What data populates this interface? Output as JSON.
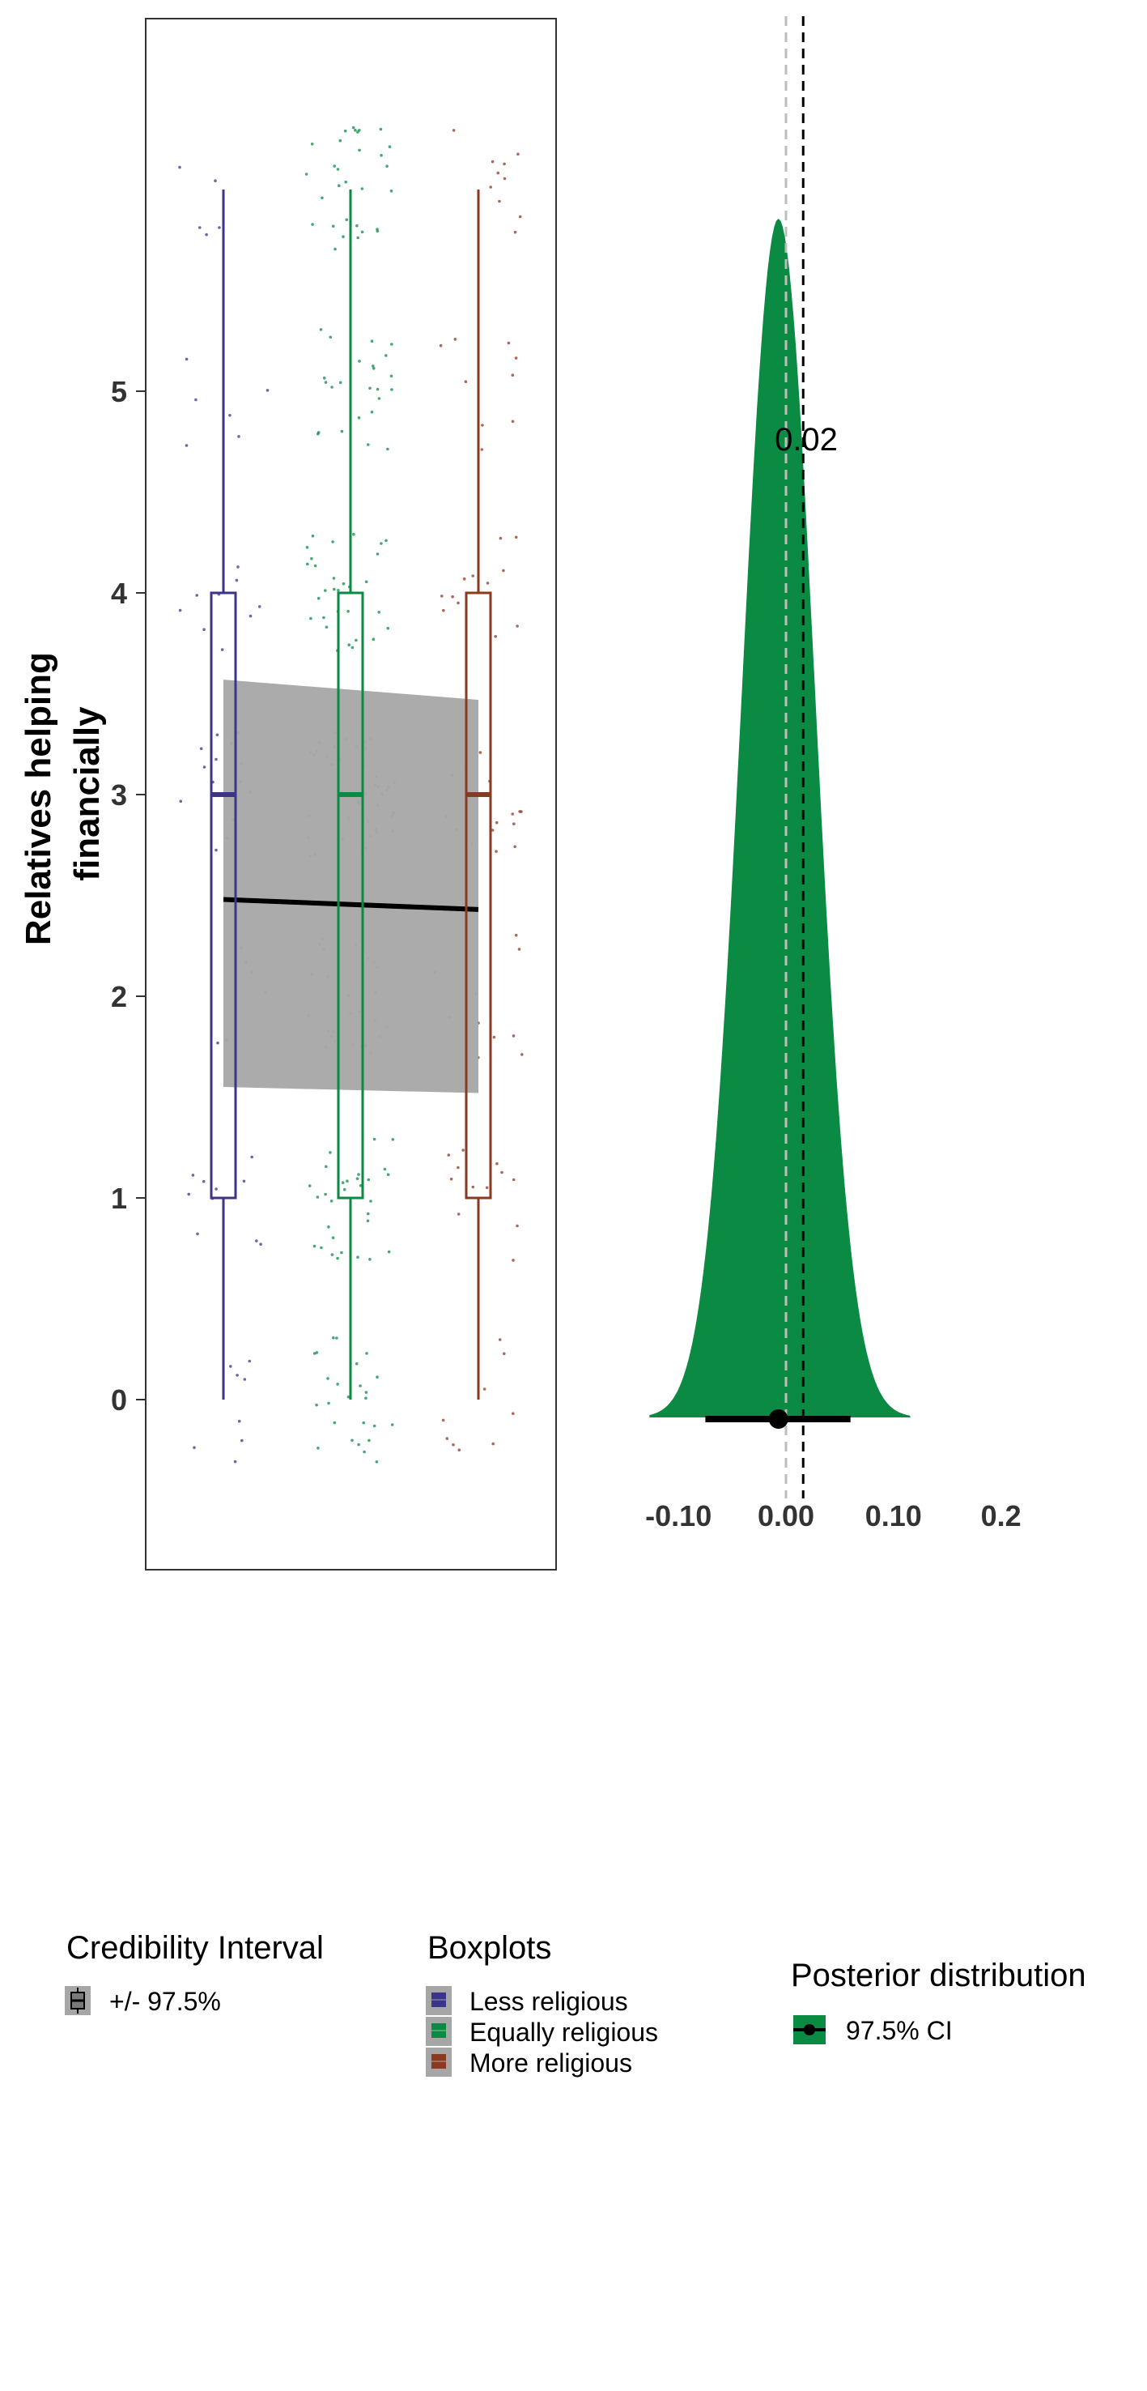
{
  "chart_data": [
    {
      "type": "box",
      "ylabel": "Relatives helping financially",
      "y_ticks": [
        "0",
        "1",
        "2",
        "3",
        "4",
        "5"
      ],
      "ylim": [
        -0.7,
        6.9
      ],
      "xlabel": "",
      "categories": [
        "Less religious",
        "Equally religious",
        "More religious"
      ],
      "boxes": [
        {
          "name": "Less religious",
          "color": "#3b3589",
          "min": 0,
          "q1": 1,
          "median": 3,
          "q3": 4,
          "max": 6
        },
        {
          "name": "Equally religious",
          "color": "#0b8a43",
          "color_fill": "#0b8a43",
          "min": 0,
          "q1": 1,
          "median": 3,
          "q3": 4,
          "max": 6
        },
        {
          "name": "More religious",
          "color": "#8b3a22",
          "min": 0,
          "q1": 1,
          "median": 3,
          "q3": 4,
          "max": 6
        }
      ],
      "regression": {
        "x": [
          1,
          3
        ],
        "y": [
          2.48,
          2.43
        ],
        "lower": [
          1.55,
          1.52
        ],
        "upper": [
          3.57,
          3.47
        ],
        "color": "#000000",
        "band_color": "#a6a6a6"
      },
      "jitter_levels": [
        0,
        1,
        2,
        3,
        4,
        5,
        6
      ]
    },
    {
      "type": "density",
      "x_ticks": [
        "-0.10",
        "0.00",
        "0.10",
        "0.2"
      ],
      "x_tick_values": [
        -0.1,
        0.0,
        0.1,
        0.2
      ],
      "xlim": [
        -0.143,
        0.235
      ],
      "mean": -0.007,
      "sd": 0.034,
      "fill": "#0b8a43",
      "ci": [
        -0.075,
        0.06
      ],
      "point_estimate": -0.007,
      "reference_lines": [
        {
          "x": 0.0,
          "color": "#bdbdbd",
          "style": "dashed"
        },
        {
          "x": 0.016,
          "color": "#000000",
          "style": "dashed"
        }
      ],
      "annotation": "0.02"
    }
  ],
  "legend": {
    "credibility": {
      "title": "Credibility Interval",
      "items": [
        "+/- 97.5%"
      ]
    },
    "boxplots": {
      "title": "Boxplots",
      "items": [
        "Less religious",
        "Equally religious",
        "More religious"
      ],
      "colors": [
        "#3b3589",
        "#0b8a43",
        "#8b3a22"
      ]
    },
    "posterior": {
      "title": "Posterior distribution",
      "items": [
        "97.5% CI"
      ],
      "color": "#0b8a43"
    }
  }
}
